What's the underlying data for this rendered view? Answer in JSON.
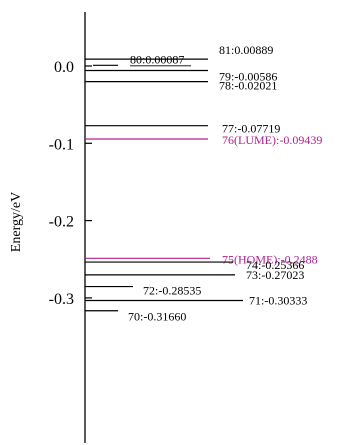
{
  "chart_data": {
    "type": "energy-level-diagram",
    "ylabel": "Energy/eV",
    "ylim": [
      -0.345,
      0.052
    ],
    "yticks": [
      {
        "value": 0.0,
        "label": "0.0"
      },
      {
        "value": -0.1,
        "label": "-0.1"
      },
      {
        "value": -0.2,
        "label": "-0.2"
      },
      {
        "value": -0.3,
        "label": "-0.3"
      }
    ],
    "colors": {
      "default": "#000000",
      "frontier": "#b0208f"
    },
    "levels": [
      {
        "label": "81:0.00889",
        "energy": 0.00889,
        "highlight": false
      },
      {
        "label": "80:0.00087",
        "energy": 0.00087,
        "highlight": false,
        "underline": true
      },
      {
        "label": "79:-0.00586",
        "energy": -0.00586,
        "highlight": false
      },
      {
        "label": "78:-0.02021",
        "energy": -0.02021,
        "highlight": false
      },
      {
        "label": "77:-0.07719",
        "energy": -0.07719,
        "highlight": false
      },
      {
        "label": "76(LUME):-0.09439",
        "energy": -0.09439,
        "highlight": true
      },
      {
        "label": "75(HOME):-0.2488",
        "energy": -0.2488,
        "highlight": true
      },
      {
        "label": "74:-0.25366",
        "energy": -0.25366,
        "highlight": false
      },
      {
        "label": "73:-0.27023",
        "energy": -0.27023,
        "highlight": false
      },
      {
        "label": "72:-0.28535",
        "energy": -0.28535,
        "highlight": false
      },
      {
        "label": "71:-0.30333",
        "energy": -0.30333,
        "highlight": false
      },
      {
        "label": "70:-0.31660",
        "energy": -0.3166,
        "highlight": false
      }
    ]
  }
}
